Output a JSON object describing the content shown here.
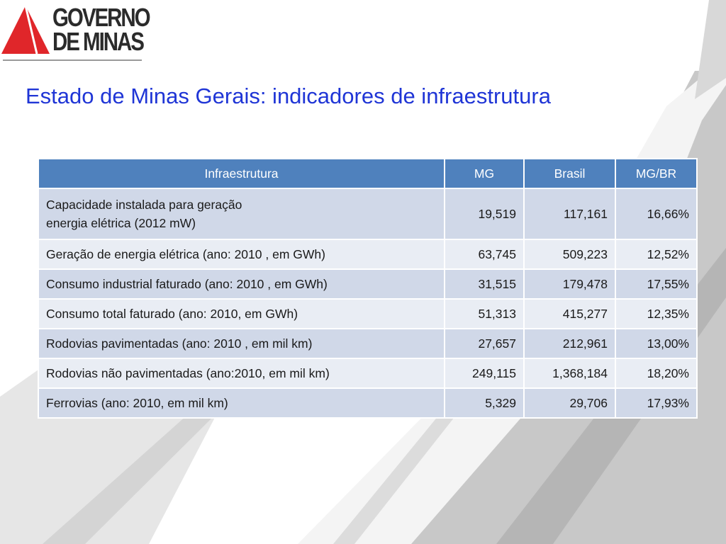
{
  "logo": {
    "line1": "GOVERNO",
    "line2": "DE MINAS",
    "triangle_color": "#e0262a"
  },
  "title": "Estado de Minas Gerais: indicadores de infraestrutura",
  "table": {
    "columns": [
      "Infraestrutura",
      "MG",
      "Brasil",
      "MG/BR"
    ],
    "rows": [
      {
        "line1": "Capacidade instalada para geração",
        "line2": "energia elétrica (2012  mW)",
        "mg": "19,519",
        "brasil": "117,161",
        "ratio": "16,66%"
      },
      {
        "label": "Geração de energia elétrica (ano: 2010 , em GWh)",
        "mg": "63,745",
        "brasil": "509,223",
        "ratio": "12,52%"
      },
      {
        "label": "Consumo industrial faturado (ano: 2010 , em GWh)",
        "mg": "31,515",
        "brasil": "179,478",
        "ratio": "17,55%"
      },
      {
        "label": "Consumo total faturado (ano: 2010, em  GWh)",
        "mg": "51,313",
        "brasil": "415,277",
        "ratio": "12,35%"
      },
      {
        "label": "Rodovias pavimentadas (ano: 2010 , em mil km)",
        "mg": "27,657",
        "brasil": "212,961",
        "ratio": "13,00%"
      },
      {
        "label": "Rodovias não pavimentadas (ano:2010, em mil km)",
        "mg": "249,115",
        "brasil": "1,368,184",
        "ratio": "18,20%"
      },
      {
        "label": "Ferrovias (ano: 2010, em mil km)",
        "mg": "5,329",
        "brasil": "29,706",
        "ratio": "17,93%"
      }
    ]
  },
  "colors": {
    "title": "#1f35d6",
    "header_bg": "#4f81bd",
    "row_dark": "#d0d8e8",
    "row_light": "#e9edf4",
    "road_gray": "#c4c4c4"
  }
}
